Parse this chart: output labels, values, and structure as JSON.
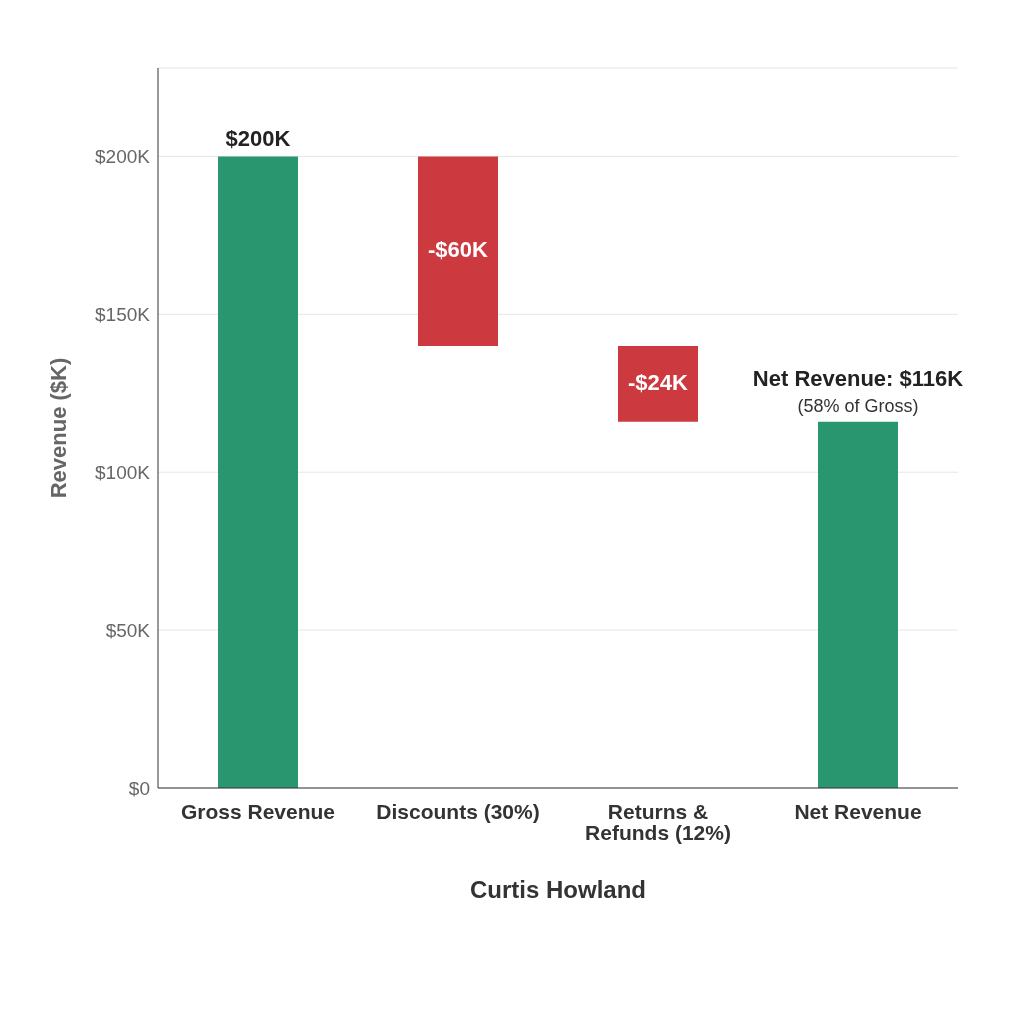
{
  "chart_data": {
    "type": "bar",
    "ylabel": "Revenue ($K)",
    "xlabel": "Curtis Howland",
    "categories": [
      "Gross Revenue",
      "Discounts (30%)",
      "Returns & Refunds (12%)",
      "Net Revenue"
    ],
    "values": [
      200,
      -60,
      -24,
      116
    ],
    "base": [
      0,
      200,
      140,
      0
    ],
    "colors": [
      "#2a9670",
      "#cc3a40",
      "#cc3a40",
      "#2a9670"
    ],
    "value_labels": [
      "$200K",
      "-$60K",
      "-$24K",
      "Net Revenue: $116K"
    ],
    "annotations": [
      {
        "text": "(58% of Gross)",
        "x": "Net Revenue",
        "y": 116
      }
    ],
    "ylim": [
      0,
      228
    ],
    "yticks": [
      {
        "value": 0,
        "label": "$0"
      },
      {
        "value": 50,
        "label": "$50K"
      },
      {
        "value": 100,
        "label": "$100K"
      },
      {
        "value": 150,
        "label": "$150K"
      },
      {
        "value": 200,
        "label": "$200K"
      }
    ],
    "grid": "y"
  }
}
